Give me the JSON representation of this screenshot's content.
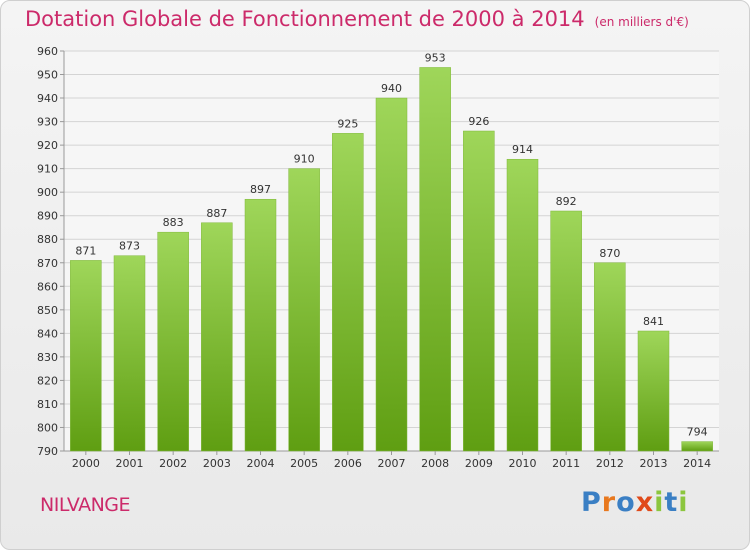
{
  "header": {
    "title": "Dotation Globale de Fonctionnement de 2000 à 2014",
    "unit": "(en milliers d'€)"
  },
  "footer": {
    "commune": "NILVANGE",
    "logo_text": "Proxiti",
    "logo_colors": [
      "#3a7fc4",
      "#e8781e",
      "#3a7fc4",
      "#e04a1a",
      "#8cc63e",
      "#3a7fc4",
      "#8cc63e"
    ]
  },
  "colors": {
    "bar_top": "#9fd65a",
    "bar_bottom": "#5f9e12",
    "title": "#cc2a6a",
    "grid": "#d4d4d4"
  },
  "chart_data": {
    "type": "bar",
    "title": "Dotation Globale de Fonctionnement de 2000 à 2014",
    "subtitle": "(en milliers d'€)",
    "xlabel": "",
    "ylabel": "",
    "categories": [
      "2000",
      "2001",
      "2002",
      "2003",
      "2004",
      "2005",
      "2006",
      "2007",
      "2008",
      "2009",
      "2010",
      "2011",
      "2012",
      "2013",
      "2014"
    ],
    "values": [
      871,
      873,
      883,
      887,
      897,
      910,
      925,
      940,
      953,
      926,
      914,
      892,
      870,
      841,
      794
    ],
    "ylim": [
      790,
      960
    ],
    "yticks": [
      790,
      800,
      810,
      820,
      830,
      840,
      850,
      860,
      870,
      880,
      890,
      900,
      910,
      920,
      930,
      940,
      950,
      960
    ],
    "grid": true,
    "legend": "none"
  }
}
